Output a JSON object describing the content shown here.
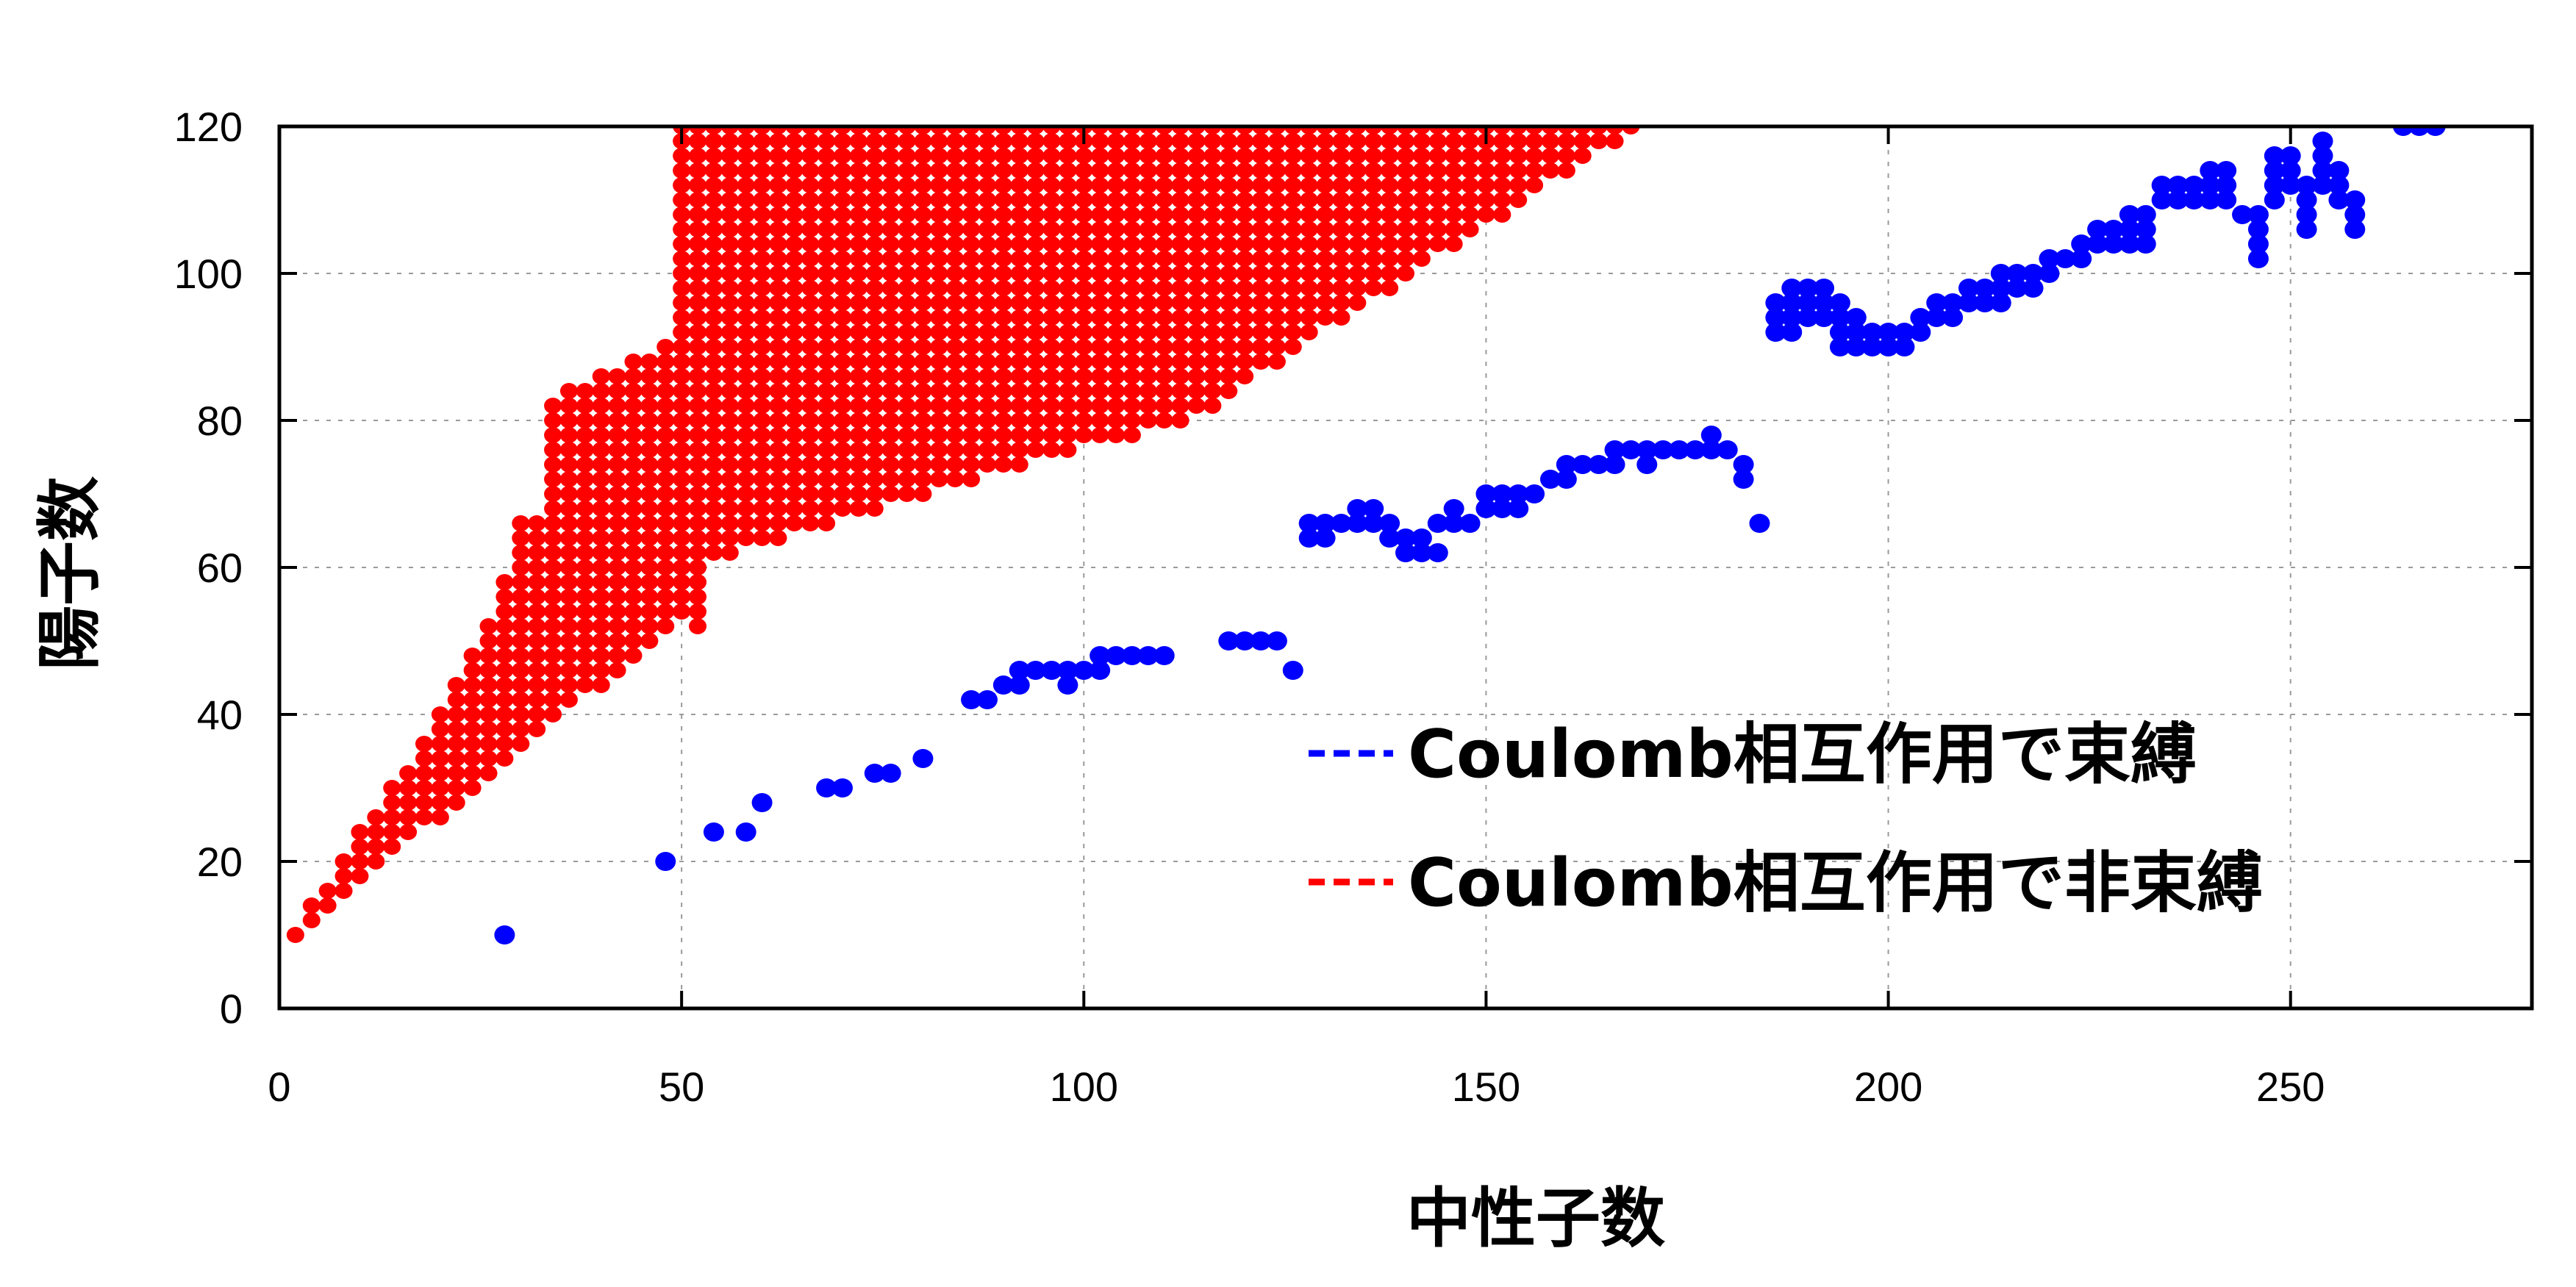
{
  "chart_data": {
    "type": "scatter",
    "xlabel": "中性子数",
    "ylabel": "陽子数",
    "xlim": [
      0,
      280
    ],
    "ylim": [
      0,
      120
    ],
    "x_ticks": [
      0,
      50,
      100,
      150,
      200,
      250
    ],
    "y_ticks": [
      0,
      20,
      40,
      60,
      80,
      100,
      120
    ],
    "grid": true,
    "legend_position": "lower-right",
    "series": [
      {
        "name": "Coulomb相互作用で束縛",
        "color": "#0000ff",
        "points": [
          [
            28,
            10
          ],
          [
            48,
            20
          ],
          [
            54,
            24
          ],
          [
            58,
            24
          ],
          [
            60,
            28
          ],
          [
            68,
            30
          ],
          [
            70,
            30
          ],
          [
            74,
            32
          ],
          [
            76,
            32
          ],
          [
            80,
            34
          ],
          [
            86,
            42
          ],
          [
            88,
            42
          ],
          [
            90,
            44
          ],
          [
            92,
            44
          ],
          [
            92,
            46
          ],
          [
            94,
            46
          ],
          [
            96,
            46
          ],
          [
            98,
            44
          ],
          [
            98,
            46
          ],
          [
            100,
            46
          ],
          [
            102,
            46
          ],
          [
            102,
            48
          ],
          [
            104,
            48
          ],
          [
            106,
            48
          ],
          [
            108,
            48
          ],
          [
            110,
            48
          ],
          [
            118,
            50
          ],
          [
            120,
            50
          ],
          [
            122,
            50
          ],
          [
            124,
            50
          ],
          [
            126,
            46
          ],
          [
            128,
            64
          ],
          [
            128,
            66
          ],
          [
            130,
            64
          ],
          [
            130,
            66
          ],
          [
            132,
            66
          ],
          [
            134,
            66
          ],
          [
            134,
            68
          ],
          [
            136,
            66
          ],
          [
            136,
            68
          ],
          [
            138,
            64
          ],
          [
            138,
            66
          ],
          [
            140,
            62
          ],
          [
            140,
            64
          ],
          [
            142,
            62
          ],
          [
            142,
            64
          ],
          [
            144,
            62
          ],
          [
            144,
            66
          ],
          [
            146,
            66
          ],
          [
            146,
            68
          ],
          [
            148,
            66
          ],
          [
            150,
            68
          ],
          [
            150,
            70
          ],
          [
            152,
            68
          ],
          [
            152,
            70
          ],
          [
            154,
            70
          ],
          [
            154,
            68
          ],
          [
            156,
            70
          ],
          [
            158,
            72
          ],
          [
            160,
            72
          ],
          [
            160,
            74
          ],
          [
            162,
            74
          ],
          [
            164,
            74
          ],
          [
            166,
            74
          ],
          [
            166,
            76
          ],
          [
            168,
            76
          ],
          [
            170,
            74
          ],
          [
            170,
            76
          ],
          [
            172,
            76
          ],
          [
            174,
            76
          ],
          [
            176,
            76
          ],
          [
            178,
            76
          ],
          [
            178,
            78
          ],
          [
            180,
            76
          ],
          [
            182,
            72
          ],
          [
            182,
            74
          ],
          [
            184,
            66
          ],
          [
            186,
            92
          ],
          [
            186,
            94
          ],
          [
            186,
            96
          ],
          [
            188,
            92
          ],
          [
            188,
            94
          ],
          [
            188,
            96
          ],
          [
            188,
            98
          ],
          [
            190,
            94
          ],
          [
            190,
            96
          ],
          [
            190,
            98
          ],
          [
            192,
            94
          ],
          [
            192,
            96
          ],
          [
            192,
            98
          ],
          [
            194,
            90
          ],
          [
            194,
            92
          ],
          [
            194,
            94
          ],
          [
            194,
            96
          ],
          [
            196,
            90
          ],
          [
            196,
            92
          ],
          [
            196,
            94
          ],
          [
            198,
            90
          ],
          [
            198,
            92
          ],
          [
            200,
            90
          ],
          [
            200,
            92
          ],
          [
            202,
            90
          ],
          [
            202,
            92
          ],
          [
            204,
            92
          ],
          [
            204,
            94
          ],
          [
            206,
            94
          ],
          [
            206,
            96
          ],
          [
            208,
            94
          ],
          [
            208,
            96
          ],
          [
            210,
            96
          ],
          [
            210,
            98
          ],
          [
            212,
            96
          ],
          [
            212,
            98
          ],
          [
            214,
            96
          ],
          [
            214,
            98
          ],
          [
            214,
            100
          ],
          [
            216,
            98
          ],
          [
            216,
            100
          ],
          [
            218,
            98
          ],
          [
            218,
            100
          ],
          [
            220,
            100
          ],
          [
            220,
            102
          ],
          [
            222,
            102
          ],
          [
            224,
            102
          ],
          [
            224,
            104
          ],
          [
            226,
            104
          ],
          [
            226,
            106
          ],
          [
            228,
            106
          ],
          [
            228,
            104
          ],
          [
            230,
            104
          ],
          [
            230,
            106
          ],
          [
            230,
            108
          ],
          [
            232,
            104
          ],
          [
            232,
            106
          ],
          [
            232,
            108
          ],
          [
            234,
            110
          ],
          [
            234,
            112
          ],
          [
            236,
            110
          ],
          [
            236,
            112
          ],
          [
            238,
            110
          ],
          [
            238,
            112
          ],
          [
            240,
            110
          ],
          [
            240,
            112
          ],
          [
            240,
            114
          ],
          [
            242,
            110
          ],
          [
            242,
            112
          ],
          [
            242,
            114
          ],
          [
            244,
            108
          ],
          [
            246,
            102
          ],
          [
            246,
            104
          ],
          [
            246,
            106
          ],
          [
            246,
            108
          ],
          [
            248,
            110
          ],
          [
            248,
            112
          ],
          [
            248,
            114
          ],
          [
            248,
            116
          ],
          [
            250,
            112
          ],
          [
            250,
            114
          ],
          [
            250,
            116
          ],
          [
            252,
            106
          ],
          [
            252,
            108
          ],
          [
            252,
            110
          ],
          [
            252,
            112
          ],
          [
            254,
            112
          ],
          [
            254,
            114
          ],
          [
            254,
            116
          ],
          [
            254,
            118
          ],
          [
            256,
            110
          ],
          [
            256,
            112
          ],
          [
            256,
            114
          ],
          [
            258,
            106
          ],
          [
            258,
            108
          ],
          [
            258,
            110
          ],
          [
            264,
            120
          ],
          [
            266,
            120
          ],
          [
            268,
            120
          ]
        ]
      },
      {
        "name": "Coulomb相互作用で非束縛",
        "color": "#ff0000",
        "points": []
      }
    ]
  }
}
